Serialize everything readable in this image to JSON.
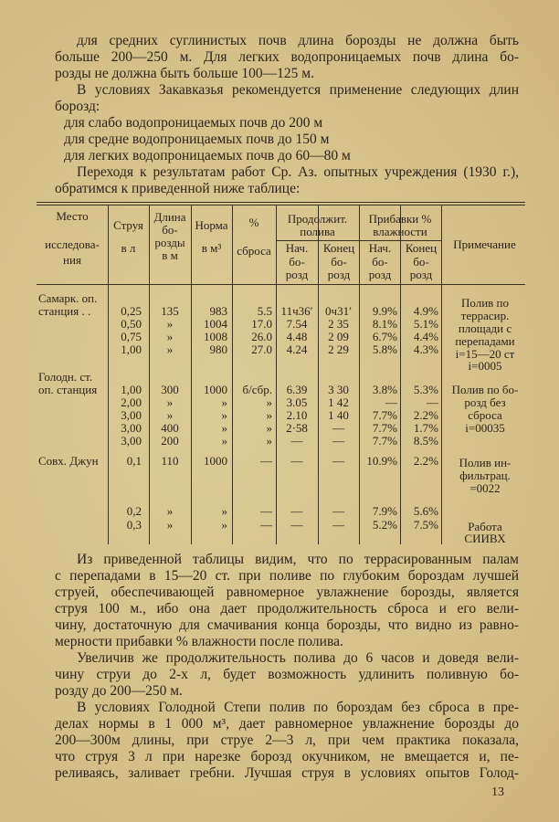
{
  "top_text": [
    {
      "lines": [
        "для средних суглинистых почв длина борозды не должна быть",
        "больше 200—250 м. Для легких водопроницаемых почв длина бо-",
        "розды не должна быть больше 100—125 м."
      ]
    },
    {
      "lines": [
        "В условиях Закавказья рекомендуется применение следующих длин",
        "борозд:"
      ]
    },
    {
      "list": [
        "для слабо водопроницаемых почв до 200 м",
        "для средне водопроницаемых почв до 150 м",
        "для легких водопроницаемых почв до 60—80 м"
      ]
    },
    {
      "lines": [
        "Переходя к результатам работ Ср. Аз. опытных учреждения (1930 г.),",
        "обратимся к приведенной ниже таблице:"
      ]
    }
  ],
  "table": {
    "headers": {
      "place": [
        "Место",
        "исследова-",
        "ния"
      ],
      "stream": [
        "Струя",
        "в л"
      ],
      "length": [
        "Длина",
        "бо-",
        "розды",
        "в м"
      ],
      "norm": [
        "Норма",
        "в м³"
      ],
      "discharge": [
        "%",
        "сброса"
      ],
      "duration": "Продолжит. полива",
      "duration_group": [
        "Продолжит.",
        "полива"
      ],
      "moisture_group": [
        "Прибавки %",
        "влажности"
      ],
      "sub": [
        "Нач.",
        "бо-",
        "розд",
        "Конец",
        "бо-",
        "розд"
      ],
      "note": "Примечание"
    },
    "groups": [
      {
        "place": [
          "Самарк. оп.",
          "станция . ."
        ],
        "rows": [
          [
            "0,25",
            "135",
            "983",
            "5.5",
            "11ч36′",
            "0ч31′",
            "9.9%",
            "4.9%"
          ],
          [
            "0,50",
            "»",
            "1004",
            "17.0",
            "7.54",
            "2 35",
            "8.1%",
            "5.1%"
          ],
          [
            "0,75",
            "»",
            "1008",
            "26.0",
            "4.48",
            "2 09",
            "6.7%",
            "4.4%"
          ],
          [
            "1,00",
            "»",
            "980",
            "27.0",
            "4.24",
            "2 29",
            "5.8%",
            "4.3%"
          ]
        ],
        "note": [
          "Полив по",
          "террасир.",
          "площади с",
          "перепадами",
          "i=15—20 ст",
          "i=0005"
        ]
      },
      {
        "place": [
          "Голодн. ст.",
          "оп. станция"
        ],
        "rows": [
          [
            "1,00",
            "300",
            "1000",
            "б/сбр.",
            "6.39",
            "3 30",
            "3.8%",
            "5.3%"
          ],
          [
            "2,00",
            "»",
            "»",
            "»",
            "3.05",
            "1 42",
            "—",
            "—"
          ],
          [
            "3,00",
            "»",
            "»",
            "»",
            "2.10",
            "1 40",
            "7.7%",
            "2.2%"
          ],
          [
            "3,00",
            "400",
            "»",
            "»",
            "2·58",
            "—",
            "7.7%",
            "1.7%"
          ],
          [
            "3,00",
            "200",
            "»",
            "»",
            "—",
            "—",
            "7.7%",
            "8.5%"
          ]
        ],
        "note": [
          "Полив по бо-",
          "розд без",
          "сброса",
          "i=00035"
        ]
      },
      {
        "place": [
          "Совх. Джун"
        ],
        "rows": [
          [
            "0,1",
            "110",
            "1000",
            "—",
            "—",
            "—",
            "10.9%",
            "2.2%"
          ]
        ],
        "note": [
          "Полив ин-",
          "фильтрац.",
          "=0022"
        ]
      },
      {
        "place": [],
        "rows": [
          [
            "0,2",
            "»",
            "»",
            "—",
            "—",
            "—",
            "7.9%",
            "5.6%"
          ],
          [
            "0,3",
            "»",
            "»",
            "—",
            "—",
            "—",
            "5.2%",
            "7.5%"
          ]
        ],
        "note": [
          "Работа",
          "СИИВХ"
        ]
      }
    ]
  },
  "bottom_text": [
    {
      "lines": [
        "Из приведенной таблицы видим, что по террасированным палам",
        "с перепадами в 15—20 ст. при поливе по глубоким бороздам лучшей",
        "струей, обеспечивающей равномерное увлажнение борозды, является",
        "струя 100 м., ибо она дает продолжительность сброса и его вели-",
        "чину, достаточную для смачивания конца борозды, что видно из равно-",
        "мерности прибавки % влажности после полива."
      ]
    },
    {
      "lines": [
        "Увеличив же продолжительность полива до 6 часов и доведя вели-",
        "чину струи до 2-х л, будет возможность удлинить поливную бо-",
        "розду до 200—250 м."
      ]
    },
    {
      "lines": [
        "В условиях Голодной Степи полив по бороздам без сброса в пре-",
        "делах нормы в 1 000 м³, дает равномерное увлажнение борозды до",
        "200—300м длины, при струе 2—3 л, при чем практика показала,",
        "что струя 3 л при нарезке борозд окучником, не вмещается и, пе-",
        "реливаясь, заливает гребни. Лучшая струя в условиях опытов Голод-"
      ],
      "continues": true
    }
  ],
  "page_number": "13"
}
